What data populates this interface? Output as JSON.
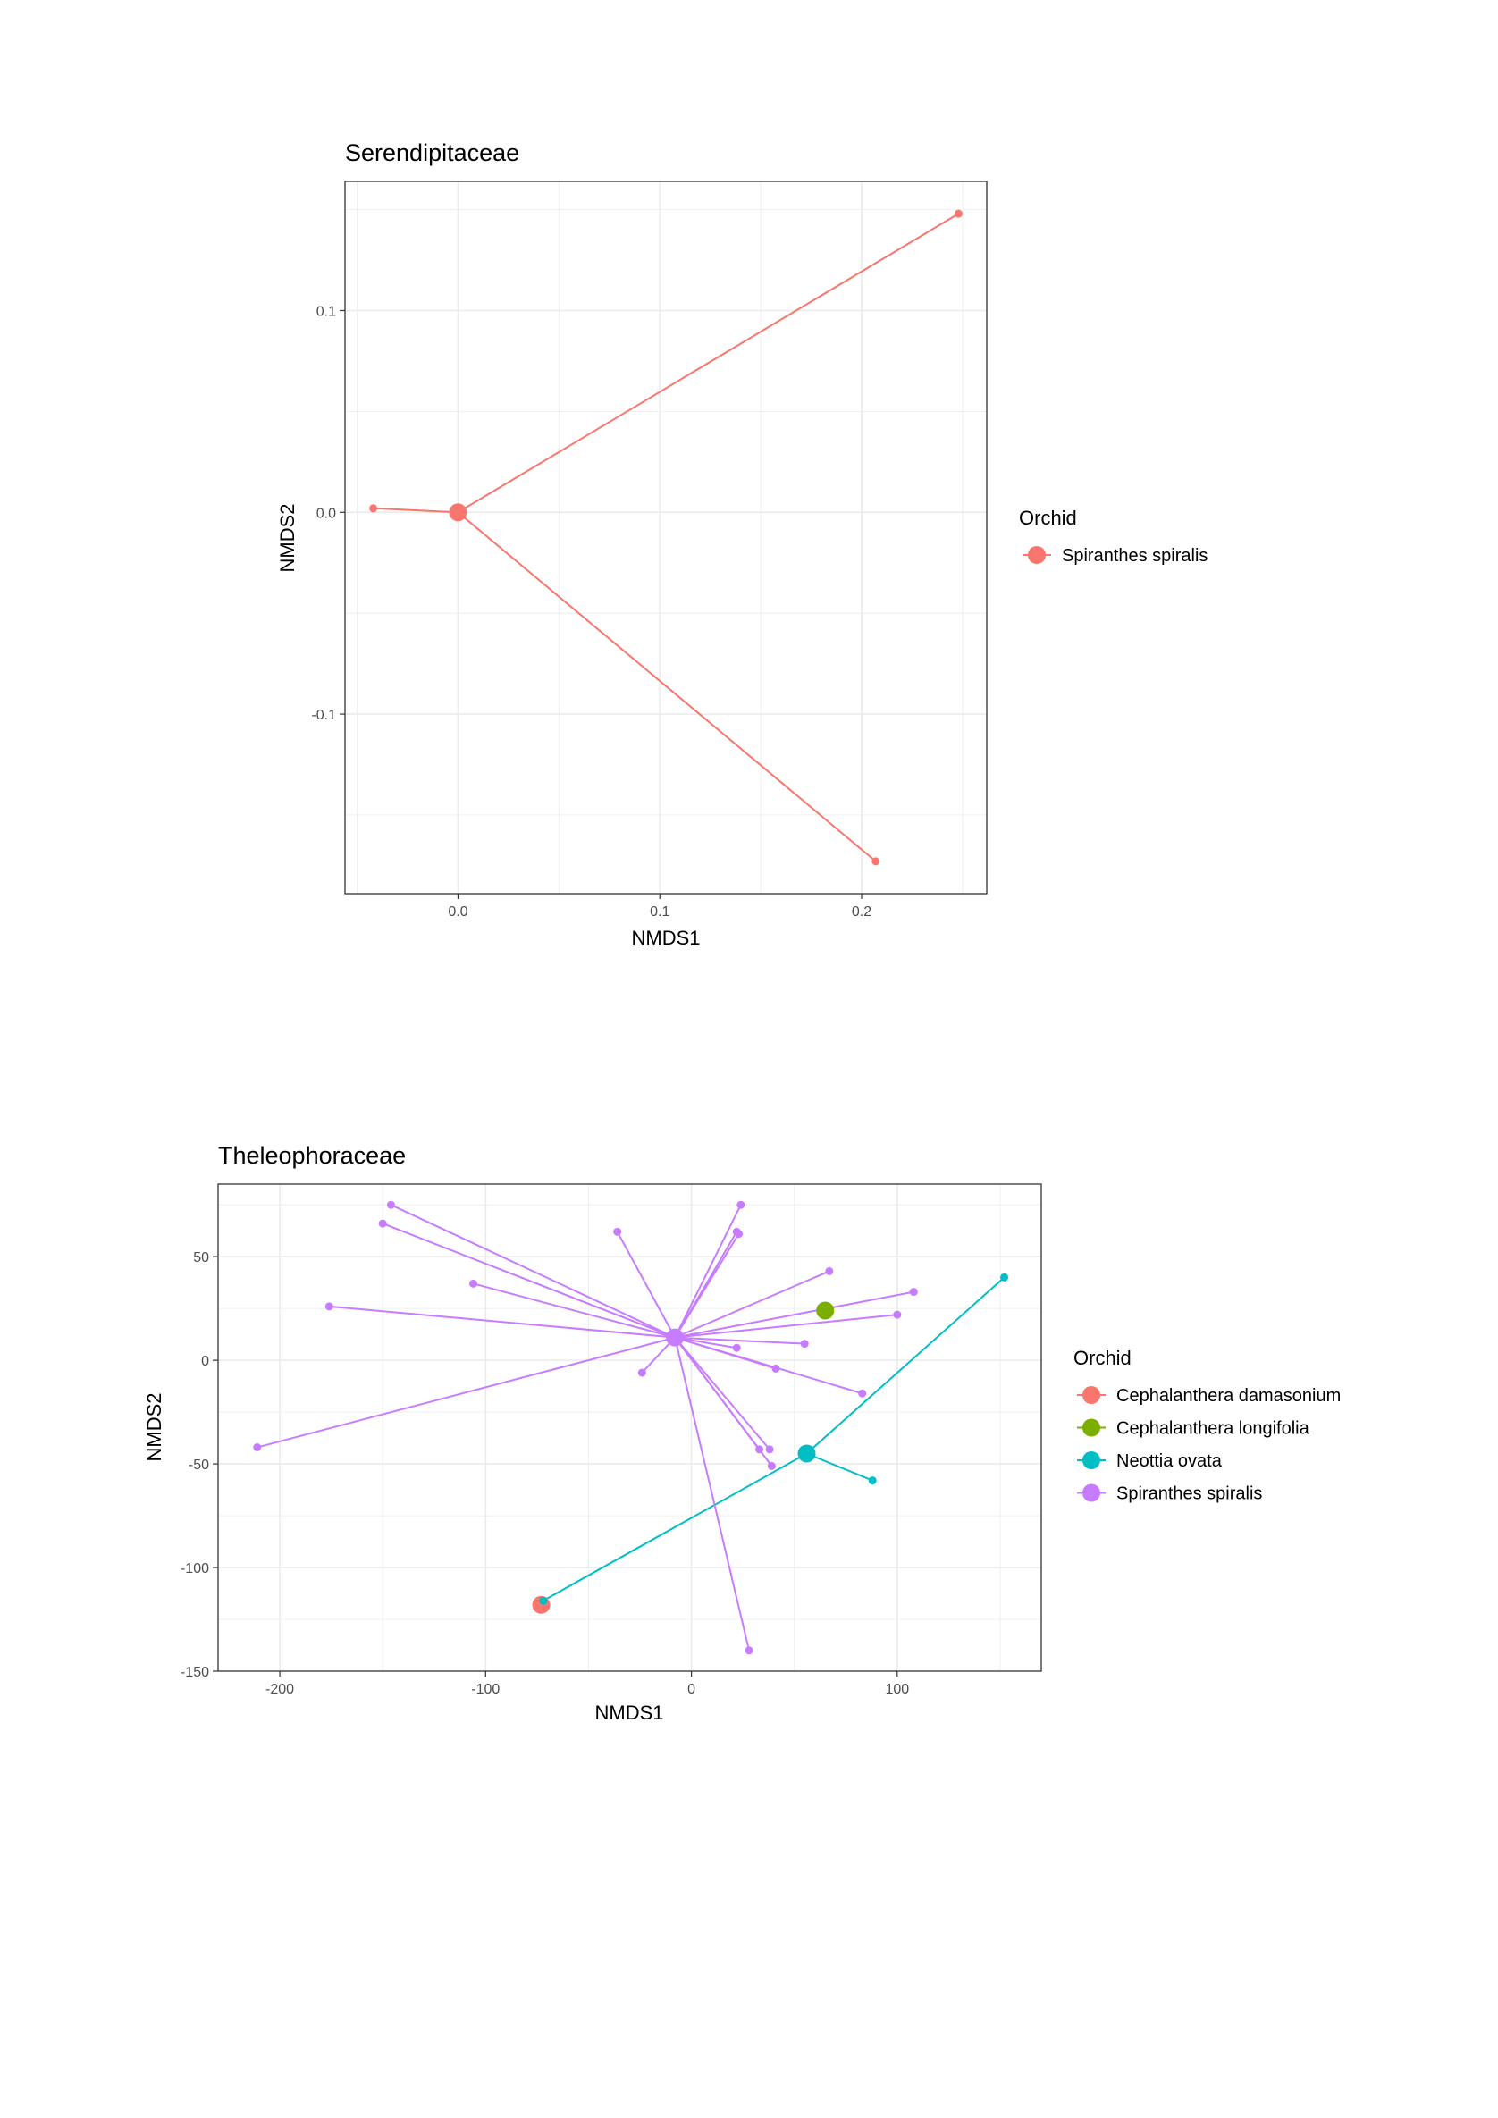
{
  "chart_data": [
    {
      "type": "scatter",
      "title": "Serendipitaceae",
      "xlabel": "NMDS1",
      "ylabel": "NMDS2",
      "xlim": [
        -0.056,
        0.262
      ],
      "ylim": [
        -0.189,
        0.164
      ],
      "x_ticks": [
        0.0,
        0.1,
        0.2
      ],
      "x_tick_labels": [
        "0.0",
        "0.1",
        "0.2"
      ],
      "y_ticks": [
        -0.1,
        0.0,
        0.1
      ],
      "y_tick_labels": [
        "-0.1",
        "0.0",
        "0.1"
      ],
      "grid": true,
      "legend": {
        "title": "Orchid",
        "placement": "right"
      },
      "series": [
        {
          "name": "Spiranthes spiralis",
          "color": "#F8766D",
          "centroid": [
            0.0,
            0.0
          ],
          "points": [
            [
              -0.042,
              0.002
            ],
            [
              0.248,
              0.148
            ],
            [
              0.207,
              -0.173
            ]
          ]
        }
      ]
    },
    {
      "type": "scatter",
      "title": "Theleophoraceae",
      "xlabel": "NMDS1",
      "ylabel": "NMDS2",
      "xlim": [
        -230,
        170
      ],
      "ylim": [
        -150,
        85
      ],
      "x_ticks": [
        -200,
        -100,
        0,
        100
      ],
      "x_tick_labels": [
        "-200",
        "-100",
        "0",
        "100"
      ],
      "y_ticks": [
        -150,
        -100,
        -50,
        0,
        50
      ],
      "y_tick_labels": [
        "-150",
        "-100",
        "-50",
        "0",
        "50"
      ],
      "grid": true,
      "legend": {
        "title": "Orchid",
        "placement": "right"
      },
      "series": [
        {
          "name": "Cephalanthera damasonium",
          "color": "#F8766D",
          "centroid": [
            -73,
            -118
          ],
          "points": []
        },
        {
          "name": "Cephalanthera longifolia",
          "color": "#7CAE00",
          "centroid": [
            65,
            24
          ],
          "points": []
        },
        {
          "name": "Neottia ovata",
          "color": "#00BFC4",
          "centroid": [
            56,
            -45
          ],
          "points": [
            [
              -72,
              -116
            ],
            [
              152,
              40
            ],
            [
              88,
              -58
            ]
          ]
        },
        {
          "name": "Spiranthes spiralis",
          "color": "#C77CFF",
          "centroid": [
            -8,
            11
          ],
          "points": [
            [
              -146,
              75
            ],
            [
              -150,
              66
            ],
            [
              -106,
              37
            ],
            [
              -176,
              26
            ],
            [
              -211,
              -42
            ],
            [
              -36,
              62
            ],
            [
              24,
              75
            ],
            [
              22,
              62
            ],
            [
              23,
              61
            ],
            [
              67,
              43
            ],
            [
              108,
              33
            ],
            [
              100,
              22
            ],
            [
              55,
              8
            ],
            [
              22,
              6
            ],
            [
              -24,
              -6
            ],
            [
              41,
              -4
            ],
            [
              83,
              -16
            ],
            [
              33,
              -43
            ],
            [
              38,
              -43
            ],
            [
              39,
              -51
            ],
            [
              28,
              -140
            ]
          ]
        }
      ]
    }
  ]
}
